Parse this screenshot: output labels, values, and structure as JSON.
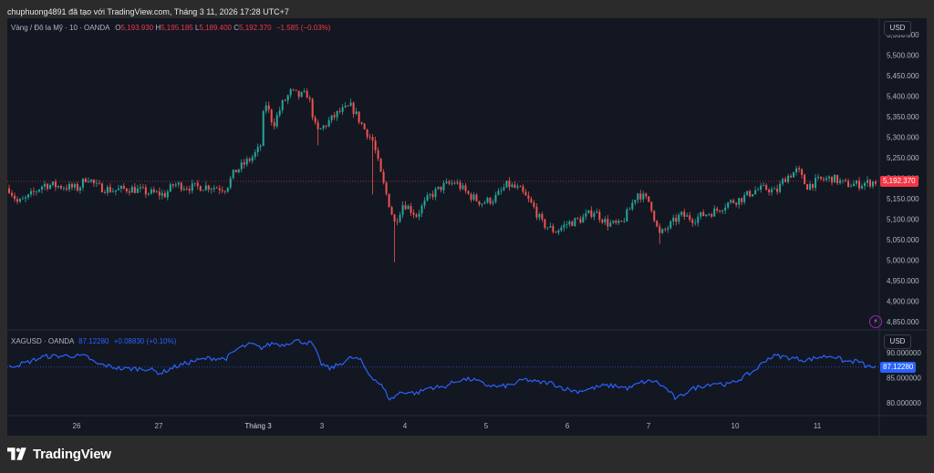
{
  "header": {
    "text": "chuphuong4891 đã tạo với TradingView.com, Tháng 3 11, 2026 17:28 UTC+7"
  },
  "main_legend": {
    "symbol": "Vàng / Đô la Mỹ · 10 · OANDA",
    "o_label": "O",
    "o": "5,193.930",
    "h_label": "H",
    "h": "5,195.185",
    "l_label": "L",
    "l": "5,189.400",
    "c_label": "C",
    "c": "5,192.370",
    "change": "−1.585 (−0.03%)"
  },
  "sub_legend": {
    "symbol": "XAGUSD · OANDA",
    "value": "87.12280",
    "change": "+0.08830 (+0.10%)"
  },
  "price_scale": {
    "currency": "USD",
    "currency_sub": "USD"
  },
  "last_price": {
    "main": "5,192.370",
    "sub": "87.12280"
  },
  "footer": {
    "brand": "TradingView"
  },
  "colors": {
    "up": "#26a69a",
    "down": "#ef5350",
    "silver_line": "#2962ff",
    "background": "#131722"
  },
  "chart_data": [
    {
      "type": "candlestick",
      "title": "Vàng / Đô la Mỹ · 10 · OANDA",
      "ylim": [
        4830,
        5590
      ],
      "y_ticks": [
        "5,550.000",
        "5,500.000",
        "5,450.000",
        "5,400.000",
        "5,350.000",
        "5,300.000",
        "5,250.000",
        "5,200.000",
        "5,150.000",
        "5,100.000",
        "5,050.000",
        "5,000.000",
        "4,950.000",
        "4,900.000",
        "4,850.000"
      ],
      "x_ticks": [
        "26",
        "27",
        "Tháng 3",
        "3",
        "4",
        "5",
        "6",
        "7",
        "10",
        "11"
      ],
      "anchors": [
        [
          0,
          5175
        ],
        [
          0.01,
          5140
        ],
        [
          0.02,
          5150
        ],
        [
          0.04,
          5185
        ],
        [
          0.06,
          5180
        ],
        [
          0.08,
          5175
        ],
        [
          0.09,
          5205
        ],
        [
          0.1,
          5180
        ],
        [
          0.12,
          5170
        ],
        [
          0.14,
          5175
        ],
        [
          0.16,
          5165
        ],
        [
          0.18,
          5160
        ],
        [
          0.19,
          5185
        ],
        [
          0.21,
          5178
        ],
        [
          0.23,
          5180
        ],
        [
          0.25,
          5175
        ],
        [
          0.26,
          5215
        ],
        [
          0.28,
          5250
        ],
        [
          0.29,
          5275
        ],
        [
          0.295,
          5390
        ],
        [
          0.305,
          5330
        ],
        [
          0.315,
          5380
        ],
        [
          0.325,
          5410
        ],
        [
          0.335,
          5400
        ],
        [
          0.345,
          5405
        ],
        [
          0.355,
          5310
        ],
        [
          0.365,
          5330
        ],
        [
          0.38,
          5360
        ],
        [
          0.395,
          5375
        ],
        [
          0.41,
          5320
        ],
        [
          0.42,
          5290
        ],
        [
          0.43,
          5200
        ],
        [
          0.445,
          5090
        ],
        [
          0.455,
          5140
        ],
        [
          0.47,
          5110
        ],
        [
          0.485,
          5155
        ],
        [
          0.5,
          5180
        ],
        [
          0.515,
          5190
        ],
        [
          0.53,
          5160
        ],
        [
          0.545,
          5140
        ],
        [
          0.56,
          5150
        ],
        [
          0.575,
          5185
        ],
        [
          0.59,
          5170
        ],
        [
          0.605,
          5130
        ],
        [
          0.615,
          5090
        ],
        [
          0.63,
          5070
        ],
        [
          0.645,
          5090
        ],
        [
          0.66,
          5100
        ],
        [
          0.675,
          5120
        ],
        [
          0.69,
          5090
        ],
        [
          0.705,
          5085
        ],
        [
          0.715,
          5120
        ],
        [
          0.725,
          5165
        ],
        [
          0.74,
          5140
        ],
        [
          0.75,
          5060
        ],
        [
          0.76,
          5080
        ],
        [
          0.775,
          5110
        ],
        [
          0.79,
          5100
        ],
        [
          0.8,
          5110
        ],
        [
          0.815,
          5120
        ],
        [
          0.83,
          5140
        ],
        [
          0.845,
          5150
        ],
        [
          0.86,
          5170
        ],
        [
          0.875,
          5175
        ],
        [
          0.885,
          5165
        ],
        [
          0.895,
          5200
        ],
        [
          0.91,
          5220
        ],
        [
          0.92,
          5180
        ],
        [
          0.935,
          5195
        ],
        [
          0.95,
          5200
        ],
        [
          0.965,
          5185
        ],
        [
          0.98,
          5185
        ],
        [
          1,
          5192
        ]
      ],
      "spikes": [
        [
          0.445,
          4995
        ],
        [
          0.42,
          5160
        ],
        [
          0.75,
          5040
        ],
        [
          0.355,
          5280
        ]
      ],
      "last": 5192.37
    },
    {
      "type": "line",
      "title": "XAGUSD · OANDA",
      "ylim": [
        77.5,
        94.5
      ],
      "y_ticks": [
        "90.000000",
        "85.000000",
        "80.000000"
      ],
      "points": [
        [
          0,
          87.2
        ],
        [
          0.02,
          88
        ],
        [
          0.04,
          89.2
        ],
        [
          0.07,
          89.4
        ],
        [
          0.09,
          89.2
        ],
        [
          0.1,
          87.8
        ],
        [
          0.13,
          86.8
        ],
        [
          0.16,
          86.8
        ],
        [
          0.175,
          85.9
        ],
        [
          0.19,
          87.1
        ],
        [
          0.21,
          88.2
        ],
        [
          0.23,
          88.9
        ],
        [
          0.25,
          88.8
        ],
        [
          0.265,
          90.9
        ],
        [
          0.28,
          91.7
        ],
        [
          0.29,
          90.9
        ],
        [
          0.305,
          91.9
        ],
        [
          0.315,
          91.5
        ],
        [
          0.33,
          92.4
        ],
        [
          0.35,
          91.8
        ],
        [
          0.36,
          87.8
        ],
        [
          0.37,
          86.8
        ],
        [
          0.38,
          87.6
        ],
        [
          0.395,
          89
        ],
        [
          0.405,
          88.6
        ],
        [
          0.415,
          85.8
        ],
        [
          0.43,
          83.4
        ],
        [
          0.44,
          80.6
        ],
        [
          0.45,
          82
        ],
        [
          0.46,
          82.2
        ],
        [
          0.47,
          81.9
        ],
        [
          0.485,
          83.1
        ],
        [
          0.5,
          83.1
        ],
        [
          0.52,
          84.6
        ],
        [
          0.535,
          84.7
        ],
        [
          0.55,
          83.6
        ],
        [
          0.565,
          83.2
        ],
        [
          0.58,
          83.6
        ],
        [
          0.595,
          84.7
        ],
        [
          0.61,
          84.1
        ],
        [
          0.625,
          84
        ],
        [
          0.64,
          82.9
        ],
        [
          0.655,
          82.3
        ],
        [
          0.67,
          82.8
        ],
        [
          0.685,
          83.4
        ],
        [
          0.7,
          83.4
        ],
        [
          0.715,
          82.9
        ],
        [
          0.73,
          84.1
        ],
        [
          0.745,
          84.4
        ],
        [
          0.76,
          82.6
        ],
        [
          0.77,
          80.7
        ],
        [
          0.785,
          82.6
        ],
        [
          0.8,
          83.4
        ],
        [
          0.815,
          84
        ],
        [
          0.83,
          83.6
        ],
        [
          0.845,
          84.9
        ],
        [
          0.86,
          86.4
        ],
        [
          0.875,
          88.8
        ],
        [
          0.885,
          89.4
        ],
        [
          0.9,
          89
        ],
        [
          0.92,
          88.5
        ],
        [
          0.935,
          89.1
        ],
        [
          0.95,
          89.4
        ],
        [
          0.965,
          88.2
        ],
        [
          0.98,
          88.3
        ],
        [
          0.99,
          87.2
        ],
        [
          1,
          87.12
        ]
      ],
      "last": 87.1228
    }
  ]
}
